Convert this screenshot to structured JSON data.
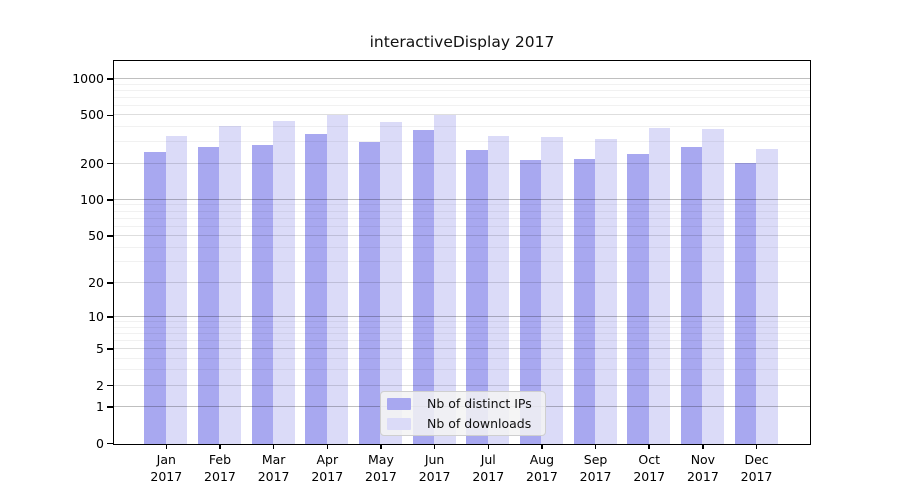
{
  "title": "interactiveDisplay 2017",
  "chart_data": {
    "type": "bar",
    "title": "interactiveDisplay 2017",
    "categories": [
      "Jan",
      "Feb",
      "Mar",
      "Apr",
      "May",
      "Jun",
      "Jul",
      "Aug",
      "Sep",
      "Oct",
      "Nov",
      "Dec"
    ],
    "year_label": "2017",
    "series": [
      {
        "name": "Nb of distinct IPs",
        "color": "#a8a8f0",
        "values": [
          250,
          275,
          290,
          355,
          305,
          385,
          260,
          215,
          220,
          245,
          275,
          205
        ]
      },
      {
        "name": "Nb of downloads",
        "color": "#dbdbf8",
        "values": [
          345,
          410,
          455,
          505,
          445,
          510,
          345,
          335,
          320,
          400,
          390,
          265
        ]
      }
    ],
    "y_axis": {
      "scale": "log10(value+1)",
      "ticks": [
        0,
        1,
        2,
        5,
        10,
        20,
        50,
        100,
        200,
        500,
        1000
      ],
      "decade_ticks": [
        1,
        10,
        100,
        1000
      ],
      "minor_ticks": [
        3,
        4,
        6,
        7,
        8,
        9,
        30,
        40,
        60,
        70,
        80,
        90,
        300,
        400,
        600,
        700,
        800,
        900
      ],
      "range": [
        0,
        1400
      ]
    },
    "legend": {
      "position": "bottom-center",
      "entries": [
        "Nb of distinct IPs",
        "Nb of downloads"
      ]
    },
    "grid": true
  }
}
